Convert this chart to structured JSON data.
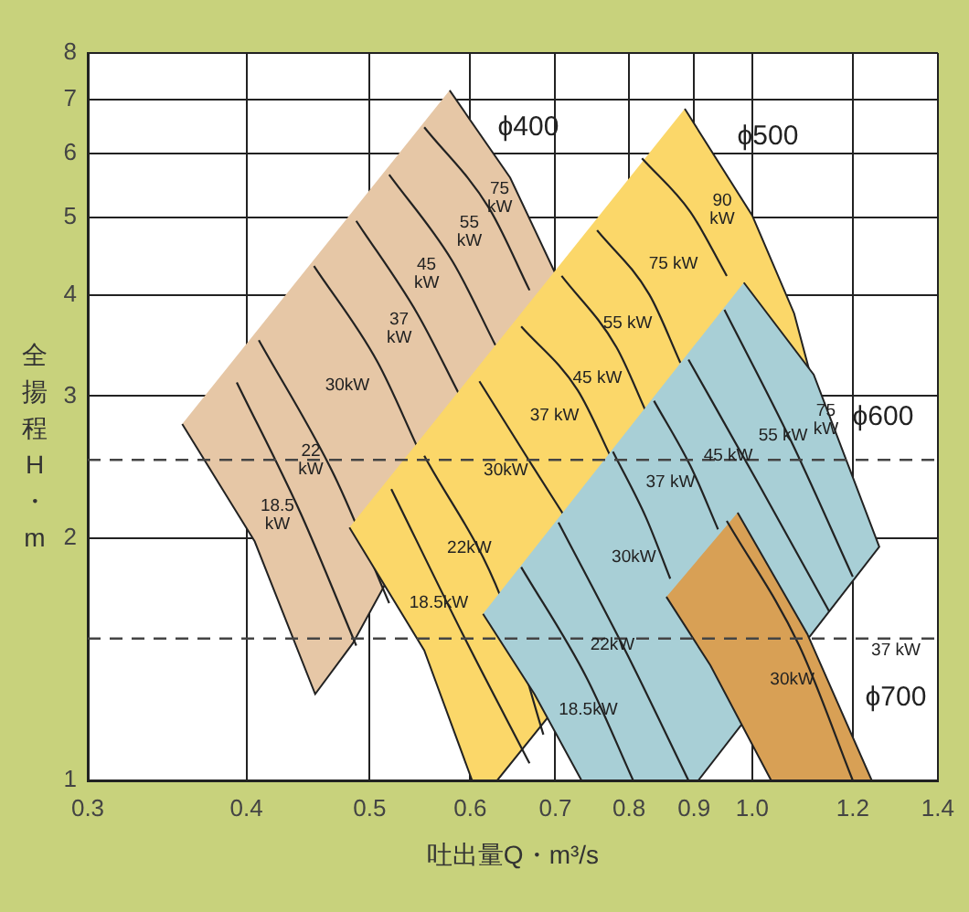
{
  "chart_data": {
    "type": "area",
    "xlabel": "吐出量Q・m³/s",
    "ylabel": "全揚程H・m",
    "log": "xy",
    "grid": true,
    "legend": false,
    "xlim": [
      0.3,
      1.4
    ],
    "xticks": [
      0.3,
      0.4,
      0.5,
      0.6,
      0.7,
      0.8,
      0.9,
      {
        "value": 1,
        "label": "1.0"
      },
      1.2,
      1.4
    ],
    "ylim": [
      1,
      8
    ],
    "yticks": [
      1,
      2,
      3,
      4,
      5,
      6,
      7,
      8
    ],
    "ref_lines": [
      {
        "axis": "y",
        "value": 2.5,
        "color": "#444444",
        "line_style": "dashed"
      },
      {
        "axis": "y",
        "value": 1.5,
        "color": "#444444",
        "line_style": "dashed"
      }
    ],
    "series": [
      {
        "color": "#e6c7a6",
        "x": [
          0.578,
          0.645,
          0.7,
          0.485,
          0.453,
          0.406,
          0.356
        ],
        "values": [
          7.19,
          5.6,
          4.26,
          1.48,
          1.28,
          1.98,
          2.77
        ]
      },
      {
        "type": "line",
        "color": "#222222",
        "x": [
          0.393,
          0.441,
          0.488
        ],
        "values": [
          3.12,
          2.15,
          1.47
        ]
      },
      {
        "type": "line",
        "color": "#222222",
        "x": [
          0.409,
          0.469,
          0.518
        ],
        "values": [
          3.52,
          2.39,
          1.66
        ]
      },
      {
        "type": "line",
        "color": "#222222",
        "x": [
          0.452,
          0.507,
          0.546
        ],
        "values": [
          4.35,
          3.31,
          2.58
        ]
      },
      {
        "type": "line",
        "color": "#222222",
        "x": [
          0.488,
          0.545,
          0.589
        ],
        "values": [
          4.95,
          3.8,
          3.0
        ]
      },
      {
        "type": "line",
        "color": "#222222",
        "x": [
          0.518,
          0.581,
          0.628
        ],
        "values": [
          5.65,
          4.41,
          3.47
        ]
      },
      {
        "type": "line",
        "color": "#222222",
        "x": [
          0.552,
          0.621,
          0.668
        ],
        "values": [
          6.47,
          5.13,
          4.06
        ]
      },
      {
        "color": "#fbd769",
        "x": [
          0.885,
          1.0,
          1.079,
          1.118,
          0.63,
          0.602,
          0.552,
          0.482
        ],
        "values": [
          6.82,
          5.03,
          3.8,
          3.08,
          1,
          1,
          1.45,
          2.06
        ]
      },
      {
        "type": "line",
        "color": "#222222",
        "x": [
          0.52,
          0.593,
          0.668
        ],
        "values": [
          2.3,
          1.51,
          1.05
        ]
      },
      {
        "type": "line",
        "color": "#222222",
        "x": [
          0.552,
          0.635,
          0.685
        ],
        "values": [
          2.53,
          1.68,
          1.14
        ]
      },
      {
        "type": "line",
        "color": "#222222",
        "x": [
          0.61,
          0.668,
          0.717
        ],
        "values": [
          3.13,
          2.49,
          2.09
        ]
      },
      {
        "type": "line",
        "color": "#222222",
        "x": [
          0.658,
          0.729,
          0.777
        ],
        "values": [
          3.66,
          3.05,
          2.49
        ]
      },
      {
        "type": "line",
        "color": "#222222",
        "x": [
          0.708,
          0.782,
          0.825
        ],
        "values": [
          4.23,
          3.45,
          2.87
        ]
      },
      {
        "type": "line",
        "color": "#222222",
        "x": [
          0.755,
          0.83,
          0.878
        ],
        "values": [
          4.82,
          4.01,
          3.3
        ]
      },
      {
        "type": "line",
        "color": "#222222",
        "x": [
          0.819,
          0.894,
          0.955
        ],
        "values": [
          5.92,
          5.08,
          4.23
        ]
      },
      {
        "color": "#a8cfd6",
        "x": [
          0.985,
          1.118,
          1.259,
          0.907,
          0.734,
          0.674,
          0.614
        ],
        "values": [
          4.15,
          3.19,
          1.95,
          1,
          1,
          1.28,
          1.61
        ]
      },
      {
        "type": "line",
        "color": "#222222",
        "x": [
          0.658,
          0.741,
          0.806
        ],
        "values": [
          1.84,
          1.34,
          1
        ]
      },
      {
        "type": "line",
        "color": "#222222",
        "x": [
          0.704,
          0.798,
          0.891
        ],
        "values": [
          2.09,
          1.43,
          1
        ]
      },
      {
        "type": "line",
        "color": "#222222",
        "x": [
          0.777,
          0.825,
          0.862
        ],
        "values": [
          2.56,
          2.12,
          1.78
        ]
      },
      {
        "type": "line",
        "color": "#222222",
        "x": [
          0.837,
          0.895,
          0.94
        ],
        "values": [
          2.96,
          2.45,
          2.05
        ]
      },
      {
        "type": "line",
        "color": "#222222",
        "x": [
          0.891,
          1.017,
          1.15
        ],
        "values": [
          3.33,
          2.3,
          1.62
        ]
      },
      {
        "type": "line",
        "color": "#222222",
        "x": [
          0.951,
          1.074,
          1.2
        ],
        "values": [
          3.84,
          2.63,
          1.79
        ]
      },
      {
        "color": "#d8a055",
        "x": [
          0.974,
          1.105,
          1.242,
          1.035,
          0.927,
          0.856
        ],
        "values": [
          2.15,
          1.52,
          1,
          1,
          1.39,
          1.69
        ]
      },
      {
        "type": "line",
        "color": "#222222",
        "x": [
          0.955,
          1.089,
          1.2
        ],
        "values": [
          2.1,
          1.47,
          1
        ]
      }
    ],
    "annotations": [
      "18.5\nkW",
      "22\nkW",
      "30kW",
      "37\nkW",
      "45\nkW",
      "55\nkW",
      "75\nkW",
      "ϕ400",
      "18.5kW",
      "22kW",
      "30kW",
      "37 kW",
      "45 kW",
      "55 kW",
      "75 kW",
      "90\nkW",
      "ϕ500",
      "18.5kW",
      "22kW",
      "30kW",
      "37 kW",
      "45 kW",
      "55 kW",
      "75\nkW",
      "ϕ600",
      "30kW",
      "37 kW",
      "ϕ700"
    ]
  }
}
